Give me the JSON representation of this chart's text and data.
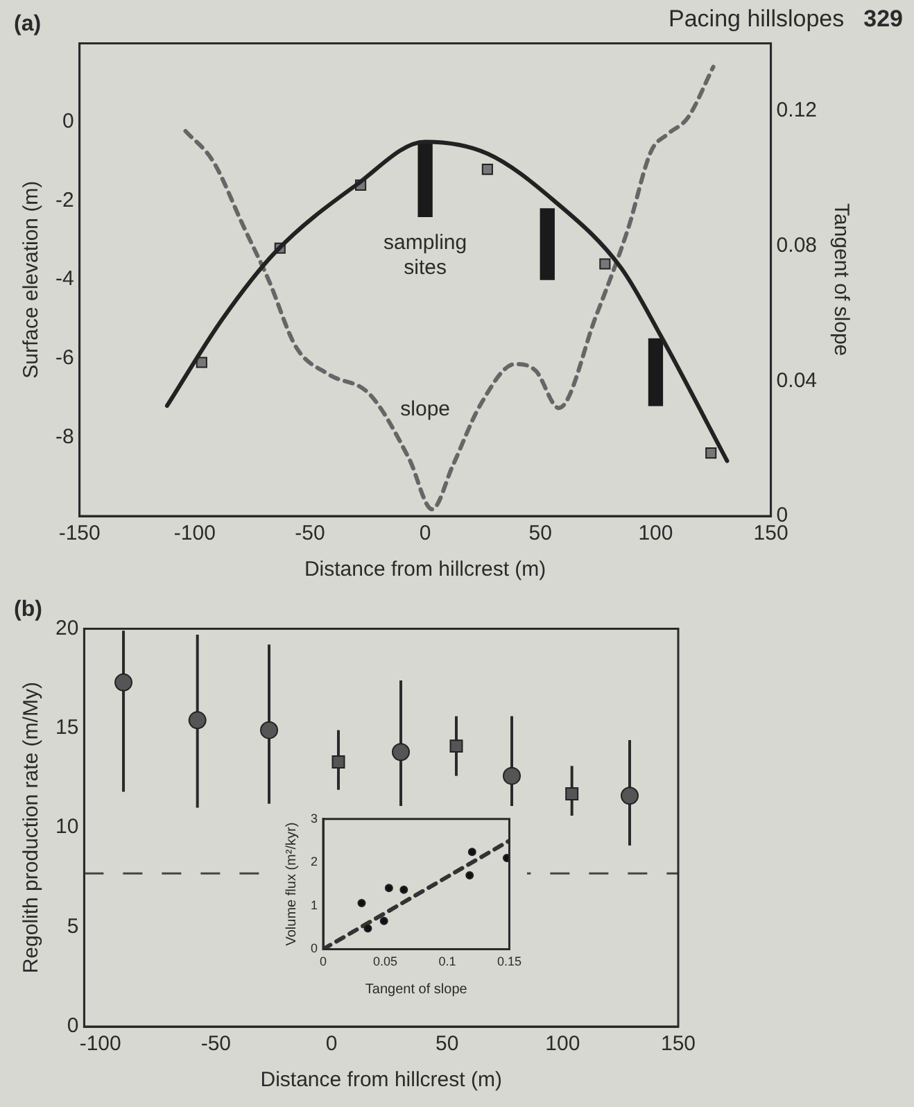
{
  "chart_data": [
    {
      "type": "line",
      "title": "(a)",
      "xlabel": "Distance from hillcrest (m)",
      "ylabel": "Surface elevation (m)",
      "y2label": "Tangent of slope",
      "xlim": [
        -150,
        150
      ],
      "xticks": [
        -150,
        -100,
        -50,
        0,
        50,
        100,
        150
      ],
      "ylim": [
        -10,
        2
      ],
      "yticks": [
        -8,
        -6,
        -4,
        -2,
        0
      ],
      "y2lim": [
        0,
        0.14
      ],
      "y2ticks": [
        0,
        0.04,
        0.08,
        0.12
      ],
      "grid": false,
      "legend": false,
      "annotations": [
        "Pacing hillslopes",
        "329",
        "sampling sites",
        "slope"
      ],
      "series": [
        {
          "color": "#222222",
          "marker": "none",
          "line_style": "solid",
          "x": [
            -112,
            -88,
            -65,
            -30,
            0,
            27,
            56,
            85,
            102,
            131
          ],
          "values": [
            -7.2,
            -5.0,
            -3.3,
            -1.6,
            -0.5,
            -0.8,
            -2.0,
            -3.7,
            -5.4,
            -8.6
          ]
        },
        {
          "type": "scatter",
          "color": "#777777",
          "marker": "square",
          "x": [
            -97,
            -63,
            -28,
            27,
            78,
            124
          ],
          "values": [
            -6.1,
            -3.2,
            -1.6,
            -1.2,
            -3.6,
            -8.4
          ]
        },
        {
          "type": "bar",
          "color": "#1a1a1a",
          "x": [
            0,
            53,
            100
          ],
          "base": [
            -2.4,
            -4.0,
            -7.2
          ],
          "values": [
            1.9,
            1.8,
            1.7
          ]
        },
        {
          "axis": "y2",
          "color": "#666666",
          "marker": "none",
          "line_style": "dashed",
          "x": [
            -104,
            -92,
            -79,
            -68,
            -56,
            -42,
            -24,
            -7,
            3,
            12,
            24,
            39,
            48,
            58,
            74,
            88,
            98,
            105,
            114,
            125
          ],
          "values": [
            0.114,
            0.105,
            0.086,
            0.07,
            0.05,
            0.042,
            0.036,
            0.017,
            0.002,
            0.015,
            0.033,
            0.045,
            0.043,
            0.032,
            0.059,
            0.085,
            0.108,
            0.113,
            0.118,
            0.133
          ]
        }
      ]
    },
    {
      "type": "scatter",
      "title": "(b)",
      "xlabel": "Distance from hillcrest (m)",
      "ylabel": "Regolith production rate (m/My)",
      "xlim": [
        -107,
        150
      ],
      "xticks": [
        -100,
        -50,
        0,
        50,
        100,
        150
      ],
      "ylim": [
        0,
        20
      ],
      "yticks": [
        0,
        5,
        10,
        15,
        20
      ],
      "grid": false,
      "legend": false,
      "ref_lines": [
        {
          "axis": "y",
          "value": 7.7,
          "line_style": "dashed",
          "color": "#444444"
        }
      ],
      "series": [
        {
          "color": "#555555",
          "marker": "circle",
          "x": [
            -90,
            -58,
            -27,
            30,
            78,
            129
          ],
          "values": [
            17.3,
            15.4,
            14.9,
            13.8,
            12.6,
            11.6
          ],
          "errors": [
            [
              11.8,
              19.9
            ],
            [
              11.0,
              19.7
            ],
            [
              11.2,
              19.2
            ],
            [
              10.7,
              17.4
            ],
            [
              9.4,
              15.6
            ],
            [
              9.1,
              14.4
            ]
          ]
        },
        {
          "color": "#555555",
          "marker": "square",
          "x": [
            3,
            54,
            104
          ],
          "values": [
            13.3,
            14.1,
            11.7
          ],
          "errors": [
            [
              11.9,
              14.9
            ],
            [
              12.6,
              15.6
            ],
            [
              10.6,
              13.1
            ]
          ]
        }
      ]
    },
    {
      "type": "scatter",
      "xlabel": "Tangent of slope",
      "ylabel": "Volume flux (m²/kyr)",
      "xlim": [
        0,
        0.15
      ],
      "xticks": [
        0,
        0.05,
        0.1,
        0.15
      ],
      "ylim": [
        0,
        3
      ],
      "yticks": [
        0,
        1,
        2,
        3
      ],
      "grid": false,
      "legend": false,
      "series": [
        {
          "color": "#111111",
          "marker": "circle",
          "x": [
            0.031,
            0.036,
            0.049,
            0.053,
            0.065,
            0.118,
            0.12,
            0.148
          ],
          "values": [
            1.06,
            0.48,
            0.65,
            1.41,
            1.37,
            1.7,
            2.24,
            2.1
          ]
        },
        {
          "type": "line",
          "color": "#333333",
          "marker": "none",
          "line_style": "dashed",
          "x": [
            0,
            0.15
          ],
          "values": [
            0,
            2.5
          ]
        }
      ]
    }
  ]
}
